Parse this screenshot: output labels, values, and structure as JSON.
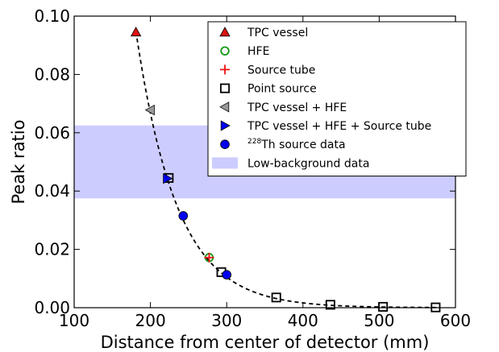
{
  "chart_data": {
    "type": "scatter",
    "xlabel": "Distance from center of detector (mm)",
    "ylabel": "Peak ratio",
    "xlim": [
      100,
      600
    ],
    "ylim": [
      0,
      0.1
    ],
    "xticks": [
      100,
      200,
      300,
      400,
      500,
      600
    ],
    "yticks": [
      0.0,
      0.02,
      0.04,
      0.06,
      0.08,
      0.1
    ],
    "xtick_labels": [
      "100",
      "200",
      "300",
      "400",
      "500",
      "600"
    ],
    "ytick_labels": [
      "0.00",
      "0.02",
      "0.04",
      "0.06",
      "0.08",
      "0.10"
    ],
    "grid": false,
    "legend_position": "top-right",
    "band": {
      "name": "Low-background data",
      "ymin": 0.0375,
      "ymax": 0.0625,
      "color": "#ccccff"
    },
    "fit_curve": {
      "style": "dashed",
      "color": "#000000",
      "amplitude": 0.0948,
      "x0": 181,
      "decay_length": 54,
      "x_range": [
        181,
        580
      ]
    },
    "series": [
      {
        "name": "TPC vessel",
        "marker": "triangle-up",
        "color": "#dd1111",
        "filled": true,
        "points": [
          [
            181,
            0.0945
          ]
        ]
      },
      {
        "name": "HFE",
        "marker": "circle",
        "color": "#119911",
        "filled": false,
        "points": [
          [
            277,
            0.0172
          ]
        ]
      },
      {
        "name": "Source tube",
        "marker": "plus",
        "color": "#ee1111",
        "filled": false,
        "points": [
          [
            277,
            0.0172
          ]
        ]
      },
      {
        "name": "Point source",
        "marker": "square",
        "color": "#000000",
        "filled": false,
        "points": [
          [
            224,
            0.0445
          ],
          [
            293,
            0.0122
          ],
          [
            365,
            0.0035
          ],
          [
            436,
            0.001
          ],
          [
            505,
            0.0003
          ],
          [
            574,
            0.0001
          ]
        ]
      },
      {
        "name": "TPC vessel + HFE",
        "marker": "triangle-left",
        "color": "#999999",
        "filled": true,
        "points": [
          [
            200,
            0.0678
          ]
        ]
      },
      {
        "name": "TPC vessel + HFE + Source tube",
        "marker": "triangle-right",
        "color": "#0000ee",
        "filled": true,
        "points": [
          [
            222,
            0.0443
          ]
        ]
      },
      {
        "name": "Th source data",
        "name_superscript": "228",
        "marker": "circle",
        "color": "#0000ee",
        "filled": true,
        "points": [
          [
            243,
            0.0315
          ],
          [
            300,
            0.0113
          ]
        ]
      }
    ],
    "legend": [
      {
        "series": 0,
        "label": "TPC vessel"
      },
      {
        "series": 1,
        "label": "HFE"
      },
      {
        "series": 2,
        "label": "Source tube"
      },
      {
        "series": 3,
        "label": "Point source"
      },
      {
        "series": 4,
        "label": "TPC vessel + HFE"
      },
      {
        "series": 5,
        "label": "TPC vessel + HFE + Source tube"
      },
      {
        "series": 6,
        "label": "Th source data",
        "superscript": "228"
      },
      {
        "band": true,
        "label": "Low-background data"
      }
    ]
  }
}
